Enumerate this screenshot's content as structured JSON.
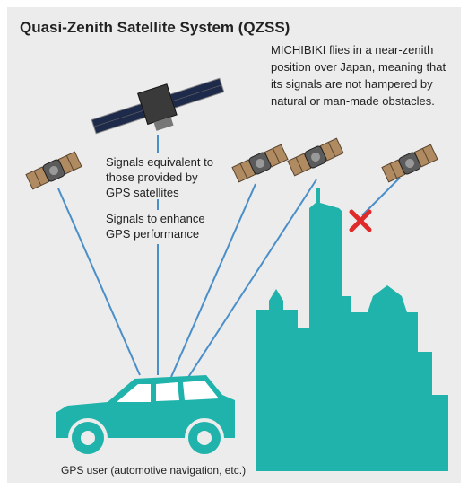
{
  "header": {
    "title": "Quasi-Zenith Satellite System (QZSS)"
  },
  "description": {
    "lines": [
      "MICHIBIKI flies in a near-zenith",
      "position over Japan, meaning that",
      "its signals are not hampered by",
      "natural or man-made obstacles."
    ]
  },
  "labels": [
    {
      "lines": [
        "Signals equivalent to",
        "those provided by",
        "GPS satellites"
      ]
    },
    {
      "lines": [
        "Signals to enhance",
        "GPS performance"
      ]
    }
  ],
  "user": {
    "label": "GPS user (automotive navigation, etc.)"
  }
}
